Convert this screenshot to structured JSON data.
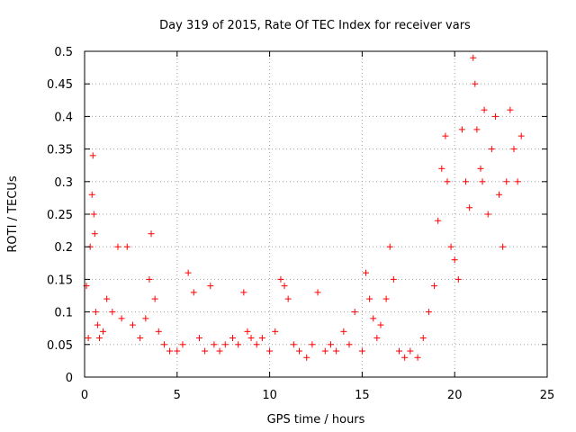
{
  "chart_data": {
    "type": "scatter",
    "title": "Day 319 of 2015, Rate Of TEC Index for receiver vars",
    "xlabel": "GPS time / hours",
    "ylabel": "ROTI / TECUs",
    "xlim": [
      0,
      25
    ],
    "ylim": [
      0,
      0.5
    ],
    "xticks": [
      0,
      5,
      10,
      15,
      20,
      25
    ],
    "xtick_labels": [
      "0",
      "5",
      "10",
      "15",
      "20",
      "25"
    ],
    "yticks": [
      0,
      0.05,
      0.1,
      0.15,
      0.2,
      0.25,
      0.3,
      0.35,
      0.4,
      0.45,
      0.5
    ],
    "ytick_labels": [
      "0",
      "0.05",
      "0.1",
      "0.15",
      "0.2",
      "0.25",
      "0.3",
      "0.35",
      "0.4",
      "0.45",
      "0.5"
    ],
    "grid": true,
    "marker": "+",
    "series": [
      {
        "name": "ROTI",
        "color": "#ff0000",
        "x": [
          0.1,
          0.2,
          0.3,
          0.4,
          0.45,
          0.5,
          0.55,
          0.6,
          0.7,
          0.8,
          1.0,
          1.2,
          1.5,
          1.8,
          2.0,
          2.3,
          2.6,
          3.0,
          3.3,
          3.5,
          3.6,
          3.8,
          4.0,
          4.3,
          4.6,
          5.0,
          5.3,
          5.6,
          5.9,
          6.2,
          6.5,
          6.8,
          7.0,
          7.3,
          7.6,
          8.0,
          8.3,
          8.6,
          8.8,
          9.0,
          9.3,
          9.6,
          10.0,
          10.3,
          10.6,
          10.8,
          11.0,
          11.3,
          11.6,
          12.0,
          12.3,
          12.6,
          13.0,
          13.3,
          13.6,
          14.0,
          14.3,
          14.6,
          15.0,
          15.2,
          15.4,
          15.6,
          15.8,
          16.0,
          16.3,
          16.5,
          16.7,
          17.0,
          17.3,
          17.6,
          18.0,
          18.3,
          18.6,
          18.9,
          19.1,
          19.3,
          19.5,
          19.6,
          19.8,
          20.0,
          20.2,
          20.4,
          20.6,
          20.8,
          21.0,
          21.1,
          21.2,
          21.4,
          21.5,
          21.6,
          21.8,
          22.0,
          22.2,
          22.4,
          22.6,
          22.8,
          23.0,
          23.2,
          23.4,
          23.6
        ],
        "y": [
          0.14,
          0.06,
          0.2,
          0.28,
          0.34,
          0.25,
          0.22,
          0.1,
          0.08,
          0.06,
          0.07,
          0.12,
          0.1,
          0.2,
          0.09,
          0.2,
          0.08,
          0.06,
          0.09,
          0.15,
          0.22,
          0.12,
          0.07,
          0.05,
          0.04,
          0.04,
          0.05,
          0.16,
          0.13,
          0.06,
          0.04,
          0.14,
          0.05,
          0.04,
          0.05,
          0.06,
          0.05,
          0.13,
          0.07,
          0.06,
          0.05,
          0.06,
          0.04,
          0.07,
          0.15,
          0.14,
          0.12,
          0.05,
          0.04,
          0.03,
          0.05,
          0.13,
          0.04,
          0.05,
          0.04,
          0.07,
          0.05,
          0.1,
          0.04,
          0.16,
          0.12,
          0.09,
          0.06,
          0.08,
          0.12,
          0.2,
          0.15,
          0.04,
          0.03,
          0.04,
          0.03,
          0.06,
          0.1,
          0.14,
          0.24,
          0.32,
          0.37,
          0.3,
          0.2,
          0.18,
          0.15,
          0.38,
          0.3,
          0.26,
          0.49,
          0.45,
          0.38,
          0.32,
          0.3,
          0.41,
          0.25,
          0.35,
          0.4,
          0.28,
          0.2,
          0.3,
          0.41,
          0.35,
          0.3,
          0.37
        ]
      }
    ]
  }
}
